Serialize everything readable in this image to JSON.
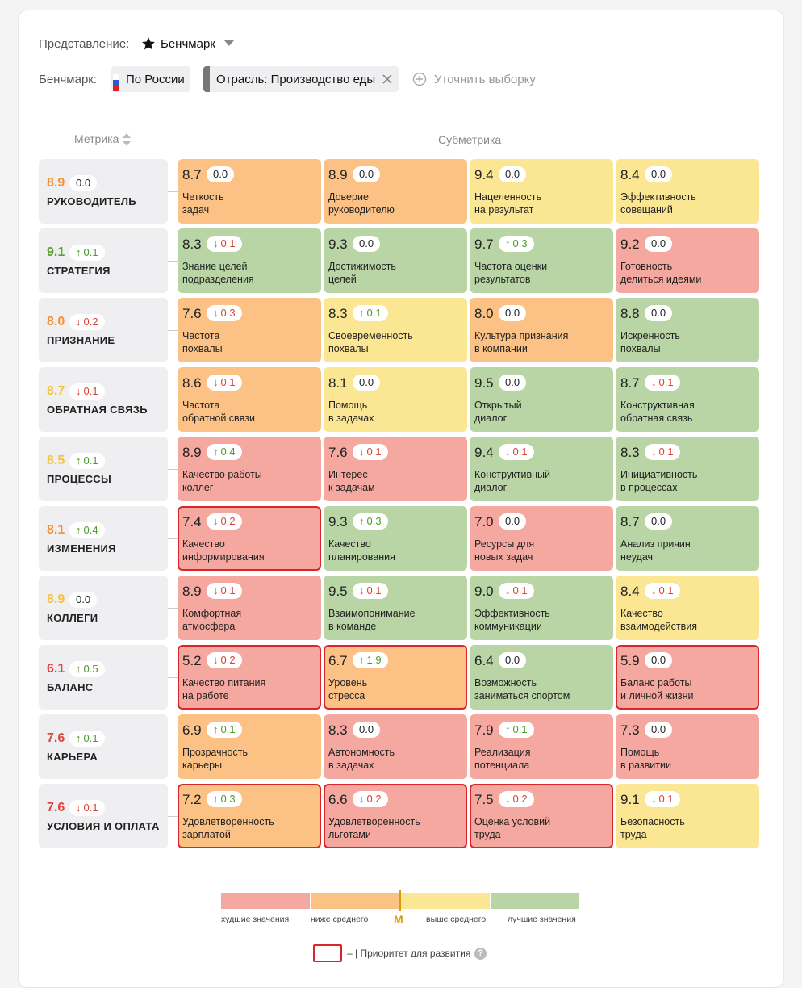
{
  "header": {
    "view_label": "Представление:",
    "view_value": "Бенчмарк",
    "benchmark_label": "Бенчмарк:",
    "chips": [
      "По России",
      "Отрасль: Производство еды"
    ],
    "refine": "Уточнить выборку"
  },
  "columns": {
    "metric": "Метрика",
    "submetric": "Субметрика"
  },
  "rows": [
    {
      "name": "РУКОВОДИТЕЛЬ",
      "score": "8.9",
      "level": "below",
      "delta": "0.0",
      "dir": "none",
      "subs": [
        {
          "score": "8.7",
          "delta": "0.0",
          "dir": "none",
          "name": "Четкость\nзадач",
          "level": "below",
          "priority": false
        },
        {
          "score": "8.9",
          "delta": "0.0",
          "dir": "none",
          "name": "Доверие\nруководителю",
          "level": "below",
          "priority": false
        },
        {
          "score": "9.4",
          "delta": "0.0",
          "dir": "none",
          "name": "Нацеленность\nна результат",
          "level": "above",
          "priority": false
        },
        {
          "score": "8.4",
          "delta": "0.0",
          "dir": "none",
          "name": "Эффективность\nсовещаний",
          "level": "above",
          "priority": false
        }
      ]
    },
    {
      "name": "СТРАТЕГИЯ",
      "score": "9.1",
      "level": "best",
      "delta": "0.1",
      "dir": "up",
      "subs": [
        {
          "score": "8.3",
          "delta": "0.1",
          "dir": "down",
          "name": "Знание целей\nподразделения",
          "level": "best",
          "priority": false
        },
        {
          "score": "9.3",
          "delta": "0.0",
          "dir": "none",
          "name": "Достижимость\nцелей",
          "level": "best",
          "priority": false
        },
        {
          "score": "9.7",
          "delta": "0.3",
          "dir": "up",
          "name": "Частота оценки\nрезультатов",
          "level": "best",
          "priority": false
        },
        {
          "score": "9.2",
          "delta": "0.0",
          "dir": "none",
          "name": "Готовность\nделиться идеями",
          "level": "worst",
          "priority": false
        }
      ]
    },
    {
      "name": "ПРИЗНАНИЕ",
      "score": "8.0",
      "level": "below",
      "delta": "0.2",
      "dir": "down",
      "subs": [
        {
          "score": "7.6",
          "delta": "0.3",
          "dir": "down",
          "name": "Частота\nпохвалы",
          "level": "below",
          "priority": false
        },
        {
          "score": "8.3",
          "delta": "0.1",
          "dir": "up",
          "name": "Своевременность\nпохвалы",
          "level": "above",
          "priority": false
        },
        {
          "score": "8.0",
          "delta": "0.0",
          "dir": "none",
          "name": "Культура признания\nв компании",
          "level": "below",
          "priority": false
        },
        {
          "score": "8.8",
          "delta": "0.0",
          "dir": "none",
          "name": "Искренность\nпохвалы",
          "level": "best",
          "priority": false
        }
      ]
    },
    {
      "name": "ОБРАТНАЯ СВЯЗЬ",
      "score": "8.7",
      "level": "above",
      "delta": "0.1",
      "dir": "down",
      "subs": [
        {
          "score": "8.6",
          "delta": "0.1",
          "dir": "down",
          "name": "Частота\nобратной связи",
          "level": "below",
          "priority": false
        },
        {
          "score": "8.1",
          "delta": "0.0",
          "dir": "none",
          "name": "Помощь\nв задачах",
          "level": "above",
          "priority": false
        },
        {
          "score": "9.5",
          "delta": "0.0",
          "dir": "none",
          "name": "Открытый\nдиалог",
          "level": "best",
          "priority": false
        },
        {
          "score": "8.7",
          "delta": "0.1",
          "dir": "down",
          "name": "Конструктивная\nобратная связь",
          "level": "best",
          "priority": false
        }
      ]
    },
    {
      "name": "ПРОЦЕССЫ",
      "score": "8.5",
      "level": "above",
      "delta": "0.1",
      "dir": "up",
      "subs": [
        {
          "score": "8.9",
          "delta": "0.4",
          "dir": "up",
          "name": "Качество работы\nколлег",
          "level": "worst",
          "priority": false
        },
        {
          "score": "7.6",
          "delta": "0.1",
          "dir": "down",
          "name": "Интерес\nк задачам",
          "level": "worst",
          "priority": false
        },
        {
          "score": "9.4",
          "delta": "0.1",
          "dir": "down",
          "name": "Конструктивный\nдиалог",
          "level": "best",
          "priority": false
        },
        {
          "score": "8.3",
          "delta": "0.1",
          "dir": "down",
          "name": "Инициативность\nв процессах",
          "level": "best",
          "priority": false
        }
      ]
    },
    {
      "name": "ИЗМЕНЕНИЯ",
      "score": "8.1",
      "level": "below",
      "delta": "0.4",
      "dir": "up",
      "subs": [
        {
          "score": "7.4",
          "delta": "0.2",
          "dir": "down",
          "name": "Качество\nинформирования",
          "level": "worst",
          "priority": true
        },
        {
          "score": "9.3",
          "delta": "0.3",
          "dir": "up",
          "name": "Качество\nпланирования",
          "level": "best",
          "priority": false
        },
        {
          "score": "7.0",
          "delta": "0.0",
          "dir": "none",
          "name": "Ресурсы для\nновых задач",
          "level": "worst",
          "priority": false
        },
        {
          "score": "8.7",
          "delta": "0.0",
          "dir": "none",
          "name": "Анализ причин\nнеудач",
          "level": "best",
          "priority": false
        }
      ]
    },
    {
      "name": "КОЛЛЕГИ",
      "score": "8.9",
      "level": "above",
      "delta": "0.0",
      "dir": "none",
      "subs": [
        {
          "score": "8.9",
          "delta": "0.1",
          "dir": "down",
          "name": "Комфортная\nатмосфера",
          "level": "worst",
          "priority": false
        },
        {
          "score": "9.5",
          "delta": "0.1",
          "dir": "down",
          "name": "Взаимопонимание\nв команде",
          "level": "best",
          "priority": false
        },
        {
          "score": "9.0",
          "delta": "0.1",
          "dir": "down",
          "name": "Эффективность\nкоммуникации",
          "level": "best",
          "priority": false
        },
        {
          "score": "8.4",
          "delta": "0.1",
          "dir": "down",
          "name": "Качество\nвзаимодействия",
          "level": "above",
          "priority": false
        }
      ]
    },
    {
      "name": "БАЛАНС",
      "score": "6.1",
      "level": "worst",
      "delta": "0.5",
      "dir": "up",
      "subs": [
        {
          "score": "5.2",
          "delta": "0.2",
          "dir": "down",
          "name": "Качество питания\nна работе",
          "level": "worst",
          "priority": true
        },
        {
          "score": "6.7",
          "delta": "1.9",
          "dir": "up",
          "name": "Уровень\nстресса",
          "level": "below",
          "priority": true
        },
        {
          "score": "6.4",
          "delta": "0.0",
          "dir": "none",
          "name": "Возможность\nзаниматься спортом",
          "level": "best",
          "priority": false
        },
        {
          "score": "5.9",
          "delta": "0.0",
          "dir": "none",
          "name": "Баланс работы\nи личной жизни",
          "level": "worst",
          "priority": true
        }
      ]
    },
    {
      "name": "КАРЬЕРА",
      "score": "7.6",
      "level": "worst",
      "delta": "0.1",
      "dir": "up",
      "subs": [
        {
          "score": "6.9",
          "delta": "0.1",
          "dir": "up",
          "name": "Прозрачность\nкарьеры",
          "level": "below",
          "priority": false
        },
        {
          "score": "8.3",
          "delta": "0.0",
          "dir": "none",
          "name": "Автономность\nв задачах",
          "level": "worst",
          "priority": false
        },
        {
          "score": "7.9",
          "delta": "0.1",
          "dir": "up",
          "name": "Реализация\nпотенциала",
          "level": "worst",
          "priority": false
        },
        {
          "score": "7.3",
          "delta": "0.0",
          "dir": "none",
          "name": "Помощь\nв развитии",
          "level": "worst",
          "priority": false
        }
      ]
    },
    {
      "name": "УСЛОВИЯ И ОПЛАТА",
      "score": "7.6",
      "level": "worst",
      "delta": "0.1",
      "dir": "down",
      "subs": [
        {
          "score": "7.2",
          "delta": "0.3",
          "dir": "up",
          "name": "Удовлетворенность\nзарплатой",
          "level": "below",
          "priority": true
        },
        {
          "score": "6.6",
          "delta": "0.2",
          "dir": "down",
          "name": "Удовлетворенность\nльготами",
          "level": "worst",
          "priority": true
        },
        {
          "score": "7.5",
          "delta": "0.2",
          "dir": "down",
          "name": "Оценка условий\nтруда",
          "level": "worst",
          "priority": true
        },
        {
          "score": "9.1",
          "delta": "0.1",
          "dir": "down",
          "name": "Безопасность\nтруда",
          "level": "above",
          "priority": false
        }
      ]
    }
  ],
  "legend": {
    "labels": [
      "худшие значения",
      "ниже среднего",
      "выше среднего",
      "лучшие значения"
    ],
    "median": "M",
    "priority_note": "– | Приоритет для развития",
    "help": "?"
  }
}
